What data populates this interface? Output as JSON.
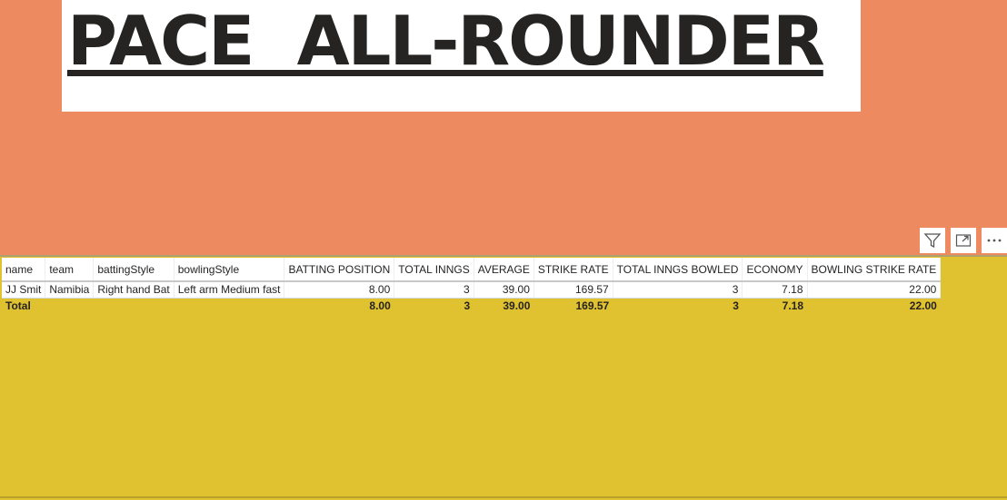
{
  "title": "PACE  ALL-ROUNDER",
  "icons": {
    "filter": "filter-icon",
    "focus": "focus-mode-icon",
    "more": "more-options-icon"
  },
  "colors": {
    "top_background": "#ed8a5f",
    "bottom_background": "#e0c12f",
    "title_text": "#252423"
  },
  "table": {
    "columns": [
      "name",
      "team",
      "battingStyle",
      "bowlingStyle",
      "BATTING POSITION",
      "TOTAL INNGS",
      "AVERAGE",
      "STRIKE RATE",
      "TOTAL INNGS BOWLED",
      "ECONOMY",
      "BOWLING STRIKE RATE"
    ],
    "rows": [
      [
        "JJ Smit",
        "Namibia",
        "Right hand Bat",
        "Left arm Medium fast",
        "8.00",
        "3",
        "39.00",
        "169.57",
        "3",
        "7.18",
        "22.00"
      ]
    ],
    "total": [
      "Total",
      "",
      "",
      "",
      "8.00",
      "3",
      "39.00",
      "169.57",
      "3",
      "7.18",
      "22.00"
    ]
  }
}
